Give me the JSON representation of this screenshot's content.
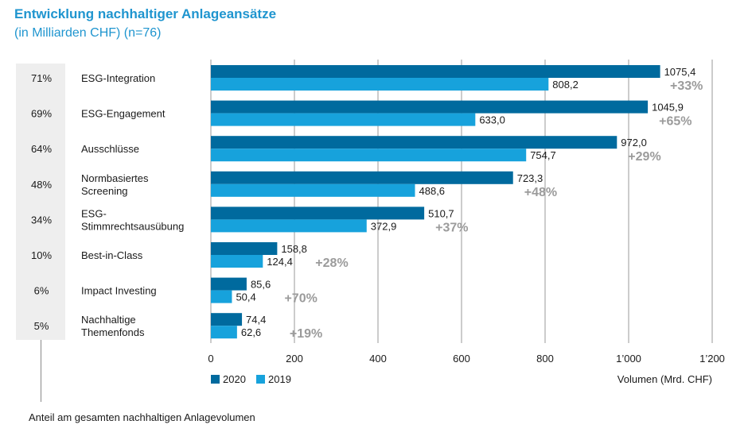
{
  "title": "Entwicklung nachhaltiger Anlageansätze",
  "subtitle": "(in Milliarden CHF) (n=76)",
  "footnote": "Anteil am gesamten nachhaltigen Anlagevolumen",
  "colors": {
    "series_2020": "#006a9e",
    "series_2019": "#17a2dc",
    "change": "#9b9b9b",
    "title": "#1f95cf",
    "grid": "#9a9a9a",
    "panel": "#eeeeee"
  },
  "chart_data": {
    "type": "bar",
    "orientation": "horizontal",
    "categories": [
      [
        "ESG-Integration"
      ],
      [
        "ESG-Engagement"
      ],
      [
        "Ausschlüsse"
      ],
      [
        "Normbasiertes",
        "Screening"
      ],
      [
        "ESG-",
        "Stimmrechtsausübung"
      ],
      [
        "Best-in-Class"
      ],
      [
        "Impact Investing"
      ],
      [
        "Nachhaltige",
        "Themenfonds"
      ]
    ],
    "shares": [
      "71%",
      "69%",
      "64%",
      "48%",
      "34%",
      "10%",
      "6%",
      "5%"
    ],
    "changes": [
      "+33%",
      "+65%",
      "+29%",
      "+48%",
      "+37%",
      "+28%",
      "+70%",
      "+19%"
    ],
    "series": [
      {
        "name": "2020",
        "values": [
          1075.4,
          1045.9,
          972.0,
          723.3,
          510.7,
          158.8,
          85.6,
          74.4
        ],
        "labels": [
          "1075,4",
          "1045,9",
          "972,0",
          "723,3",
          "510,7",
          "158,8",
          "85,6",
          "74,4"
        ]
      },
      {
        "name": "2019",
        "values": [
          808.2,
          633.0,
          754.7,
          488.6,
          372.9,
          124.4,
          50.4,
          62.6
        ],
        "labels": [
          "808,2",
          "633,0",
          "754,7",
          "488,6",
          "372,9",
          "124,4",
          "50,4",
          "62,6"
        ]
      }
    ],
    "xlim": [
      0,
      1200
    ],
    "xticks": [
      0,
      200,
      400,
      600,
      800,
      1000,
      1200
    ],
    "xtick_labels": [
      "0",
      "200",
      "400",
      "600",
      "800",
      "1’000",
      "1’200"
    ],
    "xlabel": "Volumen (Mrd. CHF)",
    "grid": true,
    "legend_position": "bottom-left"
  }
}
